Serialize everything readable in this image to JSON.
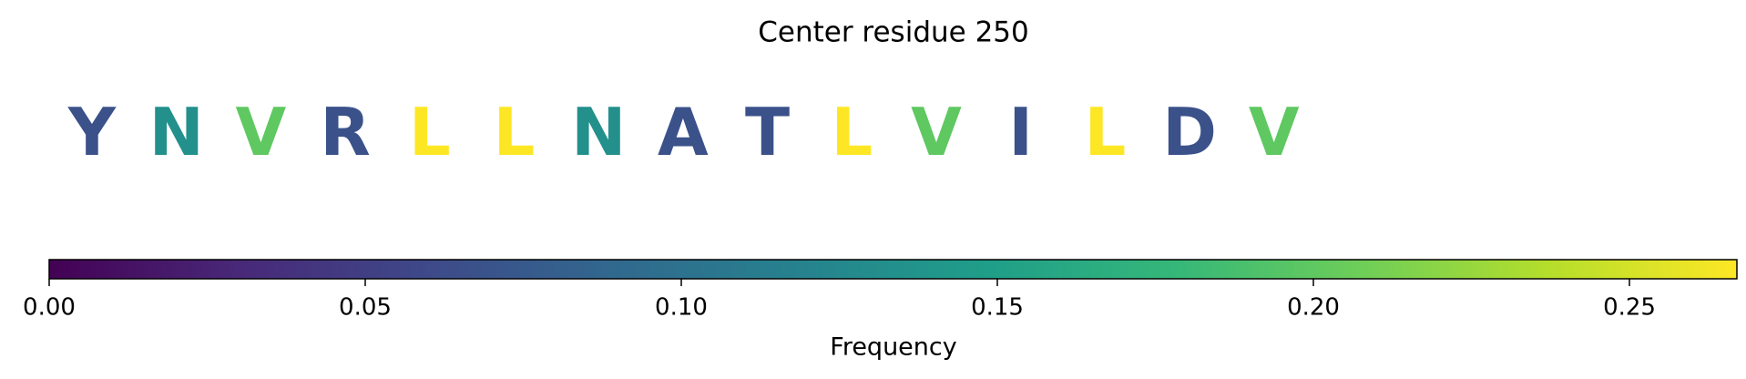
{
  "chart_data": {
    "type": "sequence-logo",
    "title": "Center residue 250",
    "categories": [
      "Y",
      "N",
      "V",
      "R",
      "L",
      "L",
      "N",
      "A",
      "T",
      "L",
      "V",
      "I",
      "L",
      "D",
      "V"
    ],
    "values": [
      0.067,
      0.133,
      0.2,
      0.067,
      0.267,
      0.267,
      0.133,
      0.067,
      0.067,
      0.267,
      0.2,
      0.067,
      0.267,
      0.067,
      0.2
    ],
    "colormap": "viridis",
    "xlabel": "Frequency",
    "xlim": [
      0,
      0.267
    ],
    "xticks": [
      {
        "value": 0,
        "label": "0.00"
      },
      {
        "value": 0.05,
        "label": "0.05"
      },
      {
        "value": 0.1,
        "label": "0.10"
      },
      {
        "value": 0.15,
        "label": "0.15"
      },
      {
        "value": 0.2,
        "label": "0.20"
      },
      {
        "value": 0.25,
        "label": "0.25"
      }
    ]
  }
}
